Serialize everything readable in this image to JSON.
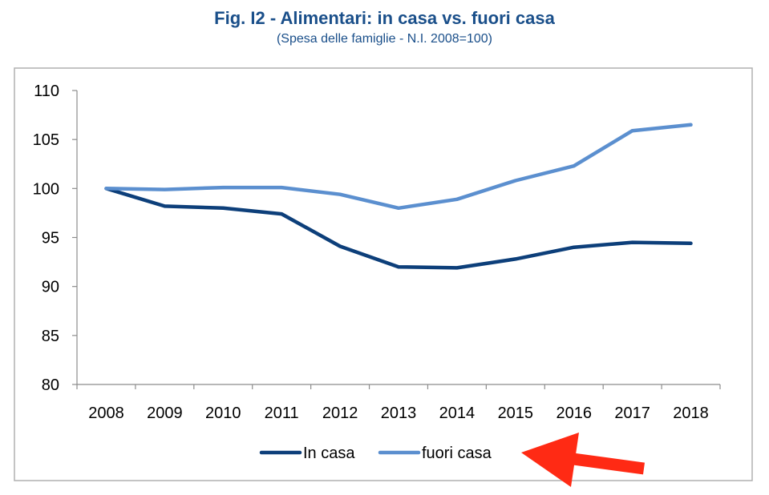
{
  "chart_data": {
    "type": "line",
    "title": "Fig. I2 - Alimentari: in casa vs. fuori casa",
    "subtitle": "(Spesa delle famiglie - N.I. 2008=100)",
    "categories": [
      "2008",
      "2009",
      "2010",
      "2011",
      "2012",
      "2013",
      "2014",
      "2015",
      "2016",
      "2017",
      "2018"
    ],
    "y_ticks": [
      "110",
      "105",
      "100",
      "95",
      "90",
      "85",
      "80"
    ],
    "ylim": [
      80,
      110
    ],
    "series": [
      {
        "name": "In casa",
        "color": "#0d3f7a",
        "values": [
          100,
          98.2,
          98.0,
          97.4,
          94.1,
          92.0,
          91.9,
          92.8,
          94.0,
          94.5,
          94.4
        ]
      },
      {
        "name": "fuori casa",
        "color": "#5b8fcf",
        "values": [
          100,
          99.9,
          100.1,
          100.1,
          99.4,
          98.0,
          98.9,
          100.8,
          102.3,
          105.9,
          106.5
        ]
      }
    ],
    "legend": [
      "In casa",
      "fuori casa"
    ],
    "annotation": {
      "type": "arrow",
      "color": "#ff2a14",
      "points_to": "legend"
    }
  }
}
